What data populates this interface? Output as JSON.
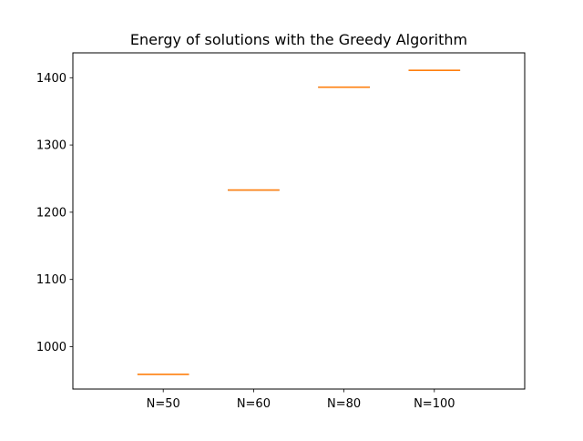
{
  "chart_data": {
    "type": "boxplot",
    "title": "Energy of solutions with the Greedy Algorithm",
    "xlabel": "",
    "ylabel": "",
    "categories": [
      "N=50",
      "N=60",
      "N=80",
      "N=100"
    ],
    "values": [
      959,
      1233,
      1386,
      1411
    ],
    "ylim": [
      937,
      1437
    ],
    "yticks": [
      1000,
      1100,
      1200,
      1300,
      1400
    ],
    "grid": false,
    "legend": "none",
    "colors": {
      "box": "#000000",
      "median": "#ff7f0e"
    }
  }
}
